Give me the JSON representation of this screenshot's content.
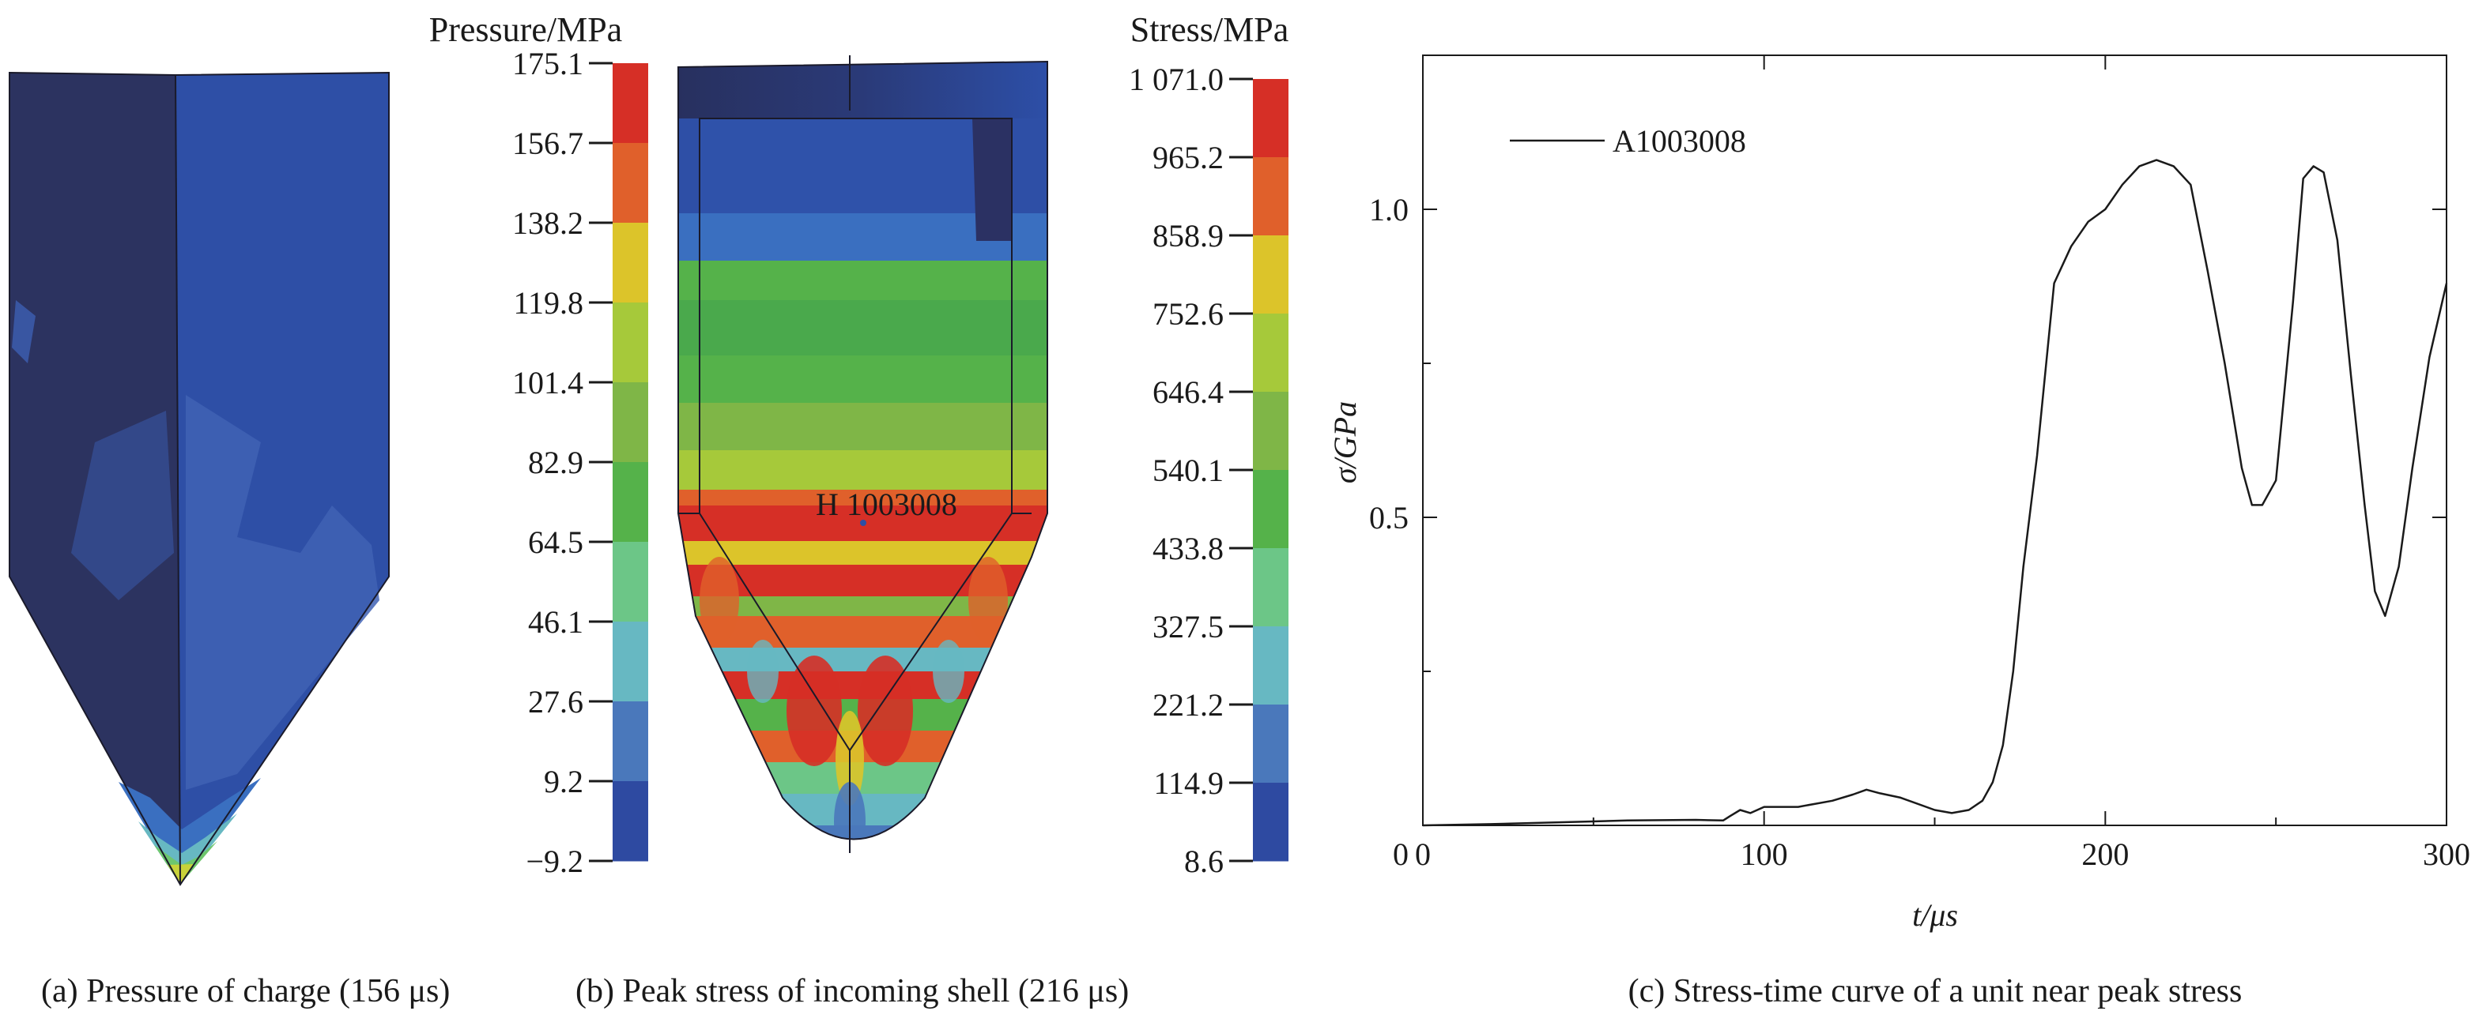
{
  "panel_a": {
    "legend_title": "Pressure/MPa",
    "ticks": [
      "175.1",
      "156.7",
      "138.2",
      "119.8",
      "101.4",
      "82.9",
      "64.5",
      "46.1",
      "27.6",
      "9.2",
      "−9.2"
    ],
    "colors": [
      "#d62f26",
      "#e0602b",
      "#dcc42a",
      "#a6c93a",
      "#7fb647",
      "#55b24a",
      "#6cc687",
      "#67b8c2",
      "#4a78bb",
      "#2e4aa1"
    ],
    "caption": "(a)  Pressure of charge (156 μs)"
  },
  "panel_b": {
    "legend_title": "Stress/MPa",
    "ticks": [
      "1 071.0",
      "965.2",
      "858.9",
      "752.6",
      "646.4",
      "540.1",
      "433.8",
      "327.5",
      "221.2",
      "114.9",
      "8.6"
    ],
    "colors": [
      "#d62f26",
      "#e0602b",
      "#dcc42a",
      "#a6c93a",
      "#7fb647",
      "#55b24a",
      "#6cc687",
      "#67b8c2",
      "#4a78bb",
      "#2e4aa1"
    ],
    "element_label": "H 1003008",
    "caption": "(b)  Peak stress of incoming shell (216 μs)"
  },
  "chart_data": {
    "type": "line",
    "title": "",
    "xlabel": "t/μs",
    "ylabel": "σ/GPa",
    "xlim": [
      0,
      300
    ],
    "ylim": [
      0,
      1.25
    ],
    "xticks": [
      "0",
      "100",
      "200",
      "300"
    ],
    "yticks": [
      "0.5",
      "1.0"
    ],
    "grid": false,
    "legend_position": "top-left",
    "series": [
      {
        "name": "A1003008",
        "x": [
          0,
          20,
          40,
          60,
          80,
          88,
          90,
          93,
          96,
          100,
          110,
          120,
          126,
          130,
          134,
          140,
          150,
          155,
          160,
          164,
          167,
          170,
          173,
          176,
          180,
          185,
          190,
          195,
          200,
          205,
          210,
          215,
          220,
          225,
          230,
          235,
          240,
          243,
          246,
          250,
          255,
          258,
          261,
          264,
          268,
          272,
          276,
          279,
          282,
          286,
          290,
          295,
          300
        ],
        "y": [
          0.0,
          0.002,
          0.005,
          0.008,
          0.009,
          0.008,
          0.015,
          0.025,
          0.02,
          0.03,
          0.03,
          0.04,
          0.05,
          0.058,
          0.052,
          0.045,
          0.025,
          0.02,
          0.025,
          0.04,
          0.07,
          0.13,
          0.25,
          0.42,
          0.6,
          0.88,
          0.94,
          0.98,
          1.0,
          1.04,
          1.07,
          1.08,
          1.07,
          1.04,
          0.9,
          0.75,
          0.58,
          0.52,
          0.52,
          0.56,
          0.85,
          1.05,
          1.07,
          1.06,
          0.95,
          0.73,
          0.52,
          0.38,
          0.34,
          0.42,
          0.58,
          0.76,
          0.88
        ]
      }
    ]
  },
  "panel_c": {
    "caption": "(c) Stress-time curve of a unit near peak stress"
  }
}
